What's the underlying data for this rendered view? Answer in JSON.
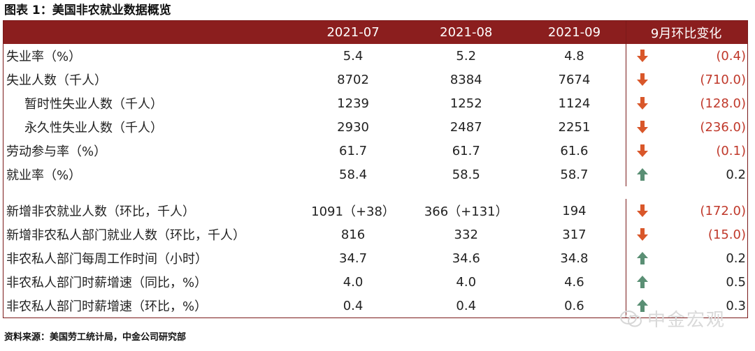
{
  "title": "图表 1：美国非农就业数据概览",
  "header": [
    "",
    "2021-07",
    "2021-08",
    "2021-09",
    "9月环比变化"
  ],
  "rows": [
    {
      "label": "失业率（%）",
      "v1": "5.4",
      "v2": "5.2",
      "v3": "4.8",
      "change": "(0.4)",
      "dir": "down"
    },
    {
      "label": "失业人数（千人）",
      "v1": "8702",
      "v2": "8384",
      "v3": "7674",
      "change": "(710.0)",
      "dir": "down"
    },
    {
      "label": "暂时性失业人数（千人）",
      "v1": "1239",
      "v2": "1252",
      "v3": "1124",
      "change": "(128.0)",
      "dir": "down"
    },
    {
      "label": "永久性失业人数（千人）",
      "v1": "2930",
      "v2": "2487",
      "v3": "2251",
      "change": "(236.0)",
      "dir": "down"
    },
    {
      "label": "劳动参与率（%）",
      "v1": "61.7",
      "v2": "61.7",
      "v3": "61.6",
      "change": "(0.1)",
      "dir": "down"
    },
    {
      "label": "就业率（%）",
      "v1": "58.4",
      "v2": "58.5",
      "v3": "58.7",
      "change": "0.2",
      "dir": "up"
    },
    {
      "label": "新增非农就业人数（环比，千人）",
      "v1": "1091（+38）",
      "v2": "366（+131）",
      "v3": "194",
      "change": "(172.0)",
      "dir": "down"
    },
    {
      "label": "新增非农私人部门就业人数（环比，千人）",
      "v1": "816",
      "v2": "332",
      "v3": "317",
      "change": "(15.0)",
      "dir": "down"
    },
    {
      "label": "非农私人部门每周工作时间（小时）",
      "v1": "34.7",
      "v2": "34.6",
      "v3": "34.8",
      "change": "0.2",
      "dir": "up"
    },
    {
      "label": "非农私人部门时薪增速（同比，%）",
      "v1": "4.0",
      "v2": "4.0",
      "v3": "4.6",
      "change": "0.5",
      "dir": "up"
    },
    {
      "label": "非农私人部门时薪增速（环比，%）",
      "v1": "0.4",
      "v2": "0.4",
      "v3": "0.6",
      "change": "0.3",
      "dir": "up"
    }
  ],
  "source": "资料来源：美国劳工统计局，中金公司研究部",
  "watermark": "中金宏观",
  "colors": {
    "header_bg": "#8b1e1e",
    "down_arrow": "#d9572a",
    "up_arrow": "#5a8f74",
    "negative_text": "#c0392b"
  }
}
